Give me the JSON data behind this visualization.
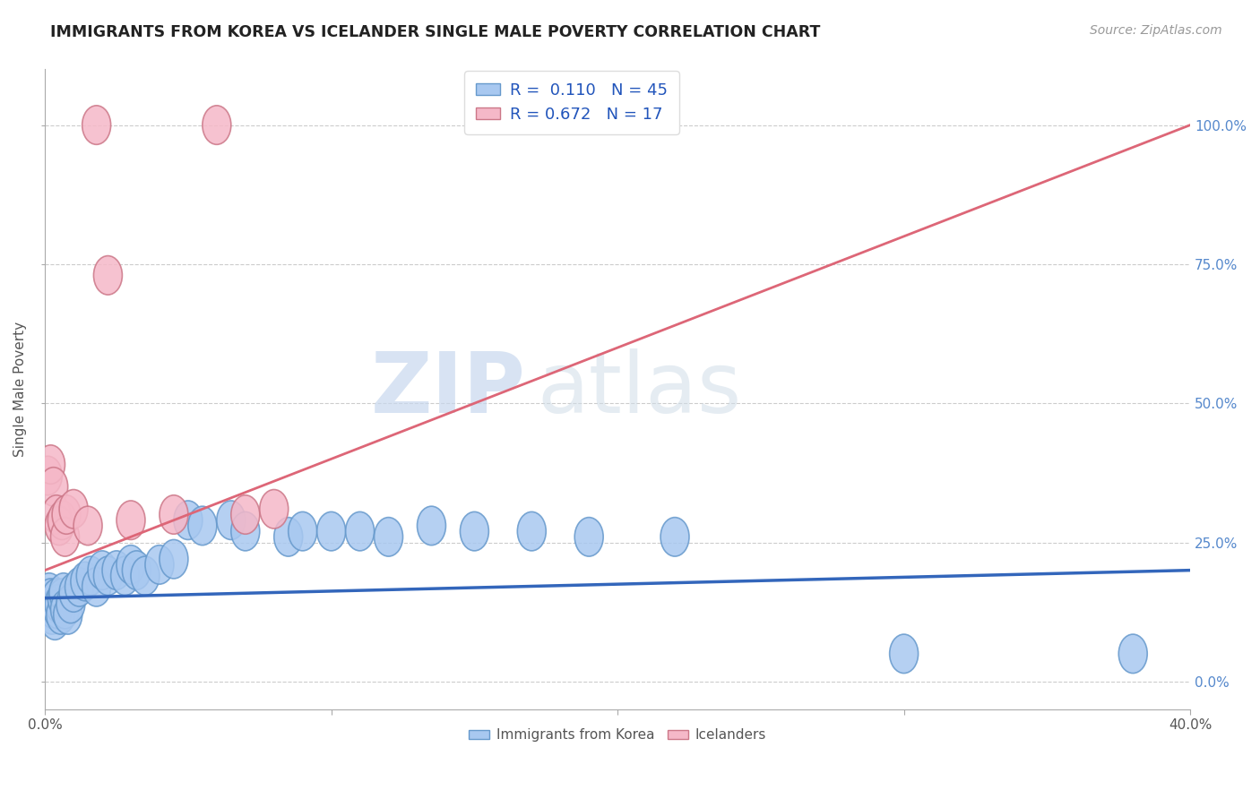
{
  "title": "IMMIGRANTS FROM KOREA VS ICELANDER SINGLE MALE POVERTY CORRELATION CHART",
  "source": "Source: ZipAtlas.com",
  "ylabel": "Single Male Poverty",
  "ylabel_ticks": [
    "0.0%",
    "25.0%",
    "50.0%",
    "75.0%",
    "100.0%"
  ],
  "ylabel_tick_vals": [
    0,
    25,
    50,
    75,
    100
  ],
  "watermark_zip": "ZIP",
  "watermark_atlas": "atlas",
  "korea_R": 0.11,
  "korea_N": 45,
  "iceland_R": 0.672,
  "iceland_N": 17,
  "korea_color": "#a8c8f0",
  "korea_edge_color": "#6699cc",
  "iceland_color": "#f5b8c8",
  "iceland_edge_color": "#cc7788",
  "korea_line_color": "#3366bb",
  "iceland_line_color": "#dd6677",
  "korea_label": "Immigrants from Korea",
  "iceland_label": "Icelanders",
  "korea_points": [
    [
      0.1,
      14
    ],
    [
      0.15,
      16
    ],
    [
      0.2,
      15
    ],
    [
      0.25,
      12
    ],
    [
      0.3,
      13
    ],
    [
      0.35,
      11
    ],
    [
      0.4,
      15
    ],
    [
      0.45,
      13
    ],
    [
      0.5,
      14
    ],
    [
      0.55,
      12
    ],
    [
      0.6,
      15
    ],
    [
      0.65,
      16
    ],
    [
      0.7,
      13
    ],
    [
      0.8,
      12
    ],
    [
      0.9,
      14
    ],
    [
      1.0,
      16
    ],
    [
      1.2,
      17
    ],
    [
      1.4,
      18
    ],
    [
      1.6,
      19
    ],
    [
      1.8,
      17
    ],
    [
      2.0,
      20
    ],
    [
      2.2,
      19
    ],
    [
      2.5,
      20
    ],
    [
      2.8,
      19
    ],
    [
      3.0,
      21
    ],
    [
      3.2,
      20
    ],
    [
      3.5,
      19
    ],
    [
      4.0,
      21
    ],
    [
      4.5,
      22
    ],
    [
      5.0,
      29
    ],
    [
      5.5,
      28
    ],
    [
      6.5,
      29
    ],
    [
      7.0,
      27
    ],
    [
      8.5,
      26
    ],
    [
      9.0,
      27
    ],
    [
      10.0,
      27
    ],
    [
      11.0,
      27
    ],
    [
      12.0,
      26
    ],
    [
      13.5,
      28
    ],
    [
      15.0,
      27
    ],
    [
      17.0,
      27
    ],
    [
      19.0,
      26
    ],
    [
      22.0,
      26
    ],
    [
      30.0,
      5
    ],
    [
      38.0,
      5
    ]
  ],
  "iceland_points": [
    [
      0.1,
      37
    ],
    [
      0.2,
      39
    ],
    [
      0.3,
      35
    ],
    [
      0.4,
      30
    ],
    [
      0.5,
      28
    ],
    [
      0.6,
      29
    ],
    [
      0.7,
      26
    ],
    [
      0.75,
      30
    ],
    [
      1.0,
      31
    ],
    [
      1.5,
      28
    ],
    [
      1.8,
      100
    ],
    [
      2.2,
      73
    ],
    [
      3.0,
      29
    ],
    [
      4.5,
      30
    ],
    [
      6.0,
      100
    ],
    [
      7.0,
      30
    ],
    [
      8.0,
      31
    ]
  ],
  "xlim": [
    0,
    40
  ],
  "ylim": [
    -5,
    110
  ],
  "grid_y_vals": [
    0,
    25,
    50,
    75,
    100
  ],
  "dpi": 100,
  "figsize": [
    14.06,
    8.92
  ],
  "korea_trend": [
    0,
    15,
    40,
    20
  ],
  "iceland_trend": [
    0,
    20,
    40,
    100
  ]
}
